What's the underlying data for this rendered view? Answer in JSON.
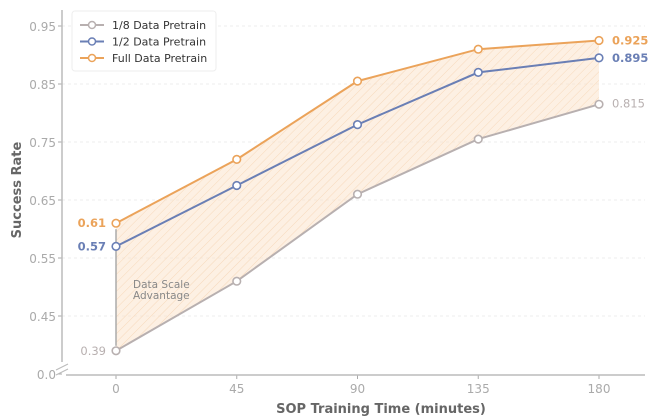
{
  "chart_data": {
    "type": "line",
    "xlabel": "SOP Training Time (minutes)",
    "ylabel": "Success Rate",
    "x": [
      0,
      45,
      90,
      135,
      180
    ],
    "x_ticks": [
      "0",
      "45",
      "90",
      "135",
      "180"
    ],
    "y_ticks": [
      "0.0",
      "0.45",
      "0.55",
      "0.65",
      "0.75",
      "0.85",
      "0.95"
    ],
    "ylim": [
      0.39,
      0.95
    ],
    "y_axis_break": true,
    "grid": "horizontal dashed",
    "legend": "top-left",
    "series": [
      {
        "name": "1/8 Data Pretrain",
        "color": "#b8b0b0",
        "values": [
          0.39,
          0.51,
          0.66,
          0.755,
          0.815
        ],
        "start_label": "0.39",
        "end_label": "0.815"
      },
      {
        "name": "1/2 Data Pretrain",
        "color": "#6a7fb5",
        "values": [
          0.57,
          0.675,
          0.78,
          0.87,
          0.895
        ],
        "start_label": "0.57",
        "end_label": "0.895"
      },
      {
        "name": "Full Data Pretrain",
        "color": "#eba35a",
        "values": [
          0.61,
          0.72,
          0.855,
          0.91,
          0.925
        ],
        "start_label": "0.61",
        "end_label": "0.925"
      }
    ],
    "annotation": [
      "Data Scale",
      "Advantage"
    ],
    "fill_color": "#fbe3cc"
  }
}
